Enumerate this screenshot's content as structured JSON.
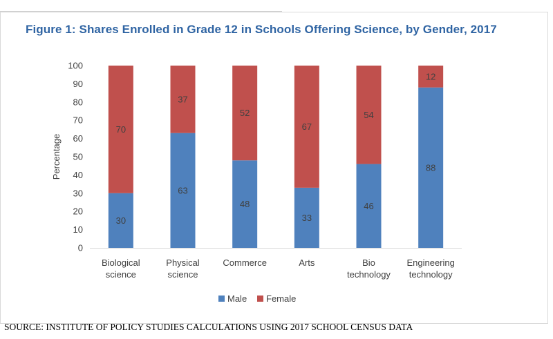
{
  "title": "Figure 1: Shares Enrolled in Grade 12 in Schools Offering Science, by Gender, 2017",
  "source": "SOURCE: INSTITUTE  OF  POLICY STUDIES CALCULATIONS USING 2017 SCHOOL CENSUS DATA",
  "colors": {
    "male": "#4f81bd",
    "female": "#c0504d"
  },
  "chart_data": {
    "type": "bar",
    "stacked": true,
    "title": "Figure 1: Shares Enrolled in Grade 12 in Schools Offering Science, by Gender, 2017",
    "xlabel": "",
    "ylabel": "Percentage",
    "ylim": [
      0,
      100
    ],
    "yticks": [
      0,
      10,
      20,
      30,
      40,
      50,
      60,
      70,
      80,
      90,
      100
    ],
    "categories": [
      [
        "Biological",
        "science"
      ],
      [
        "Physical",
        "science"
      ],
      [
        "Commerce"
      ],
      [
        "Arts"
      ],
      [
        "Bio",
        "technology"
      ],
      [
        "Engineering",
        "technology"
      ]
    ],
    "series": [
      {
        "name": "Male",
        "values": [
          30,
          63,
          48,
          33,
          46,
          88
        ]
      },
      {
        "name": "Female",
        "values": [
          70,
          37,
          52,
          67,
          54,
          12
        ]
      }
    ],
    "legend_position": "bottom",
    "grid": false
  }
}
